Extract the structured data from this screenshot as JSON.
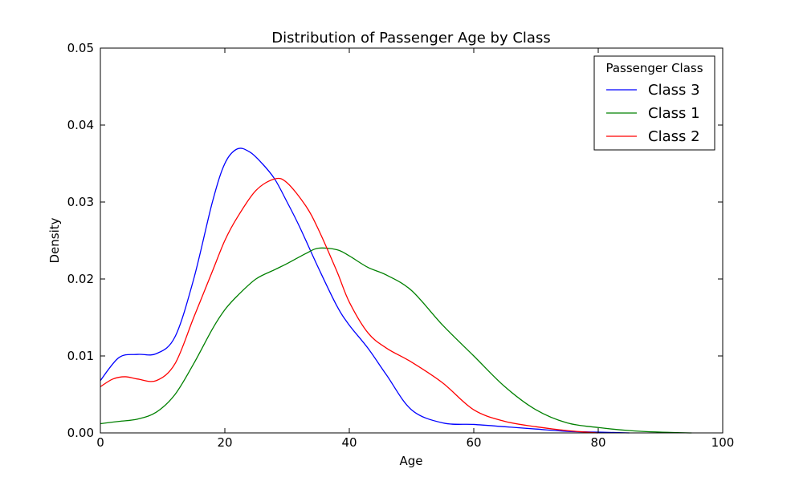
{
  "chart_data": {
    "type": "line",
    "title": "Distribution of Passenger Age by Class",
    "xlabel": "Age",
    "ylabel": "Density",
    "xlim": [
      0,
      100
    ],
    "ylim": [
      0,
      0.05
    ],
    "xticks": [
      "0",
      "20",
      "40",
      "60",
      "80",
      "100"
    ],
    "yticks": [
      "0.00",
      "0.01",
      "0.02",
      "0.03",
      "0.04",
      "0.05"
    ],
    "grid": false,
    "legend": {
      "title": "Passenger Class",
      "placement": "top-right"
    },
    "series": [
      {
        "name": "Class 3",
        "color": "#0000ff",
        "x": [
          0,
          3,
          6,
          9,
          12,
          15,
          18,
          20,
          22,
          24,
          26,
          28,
          30,
          32,
          35,
          38,
          40,
          43,
          46,
          50,
          55,
          60,
          65,
          70,
          75,
          80,
          85
        ],
        "y": [
          0.0068,
          0.0098,
          0.0102,
          0.0103,
          0.0125,
          0.02,
          0.03,
          0.035,
          0.0369,
          0.0365,
          0.035,
          0.033,
          0.03,
          0.0268,
          0.0215,
          0.0165,
          0.014,
          0.011,
          0.0075,
          0.003,
          0.0013,
          0.0011,
          0.0008,
          0.0005,
          0.0002,
          0.0001,
          0.0
        ]
      },
      {
        "name": "Class 1",
        "color": "#008000",
        "x": [
          0,
          3,
          6,
          9,
          12,
          15,
          18,
          20,
          22,
          25,
          28,
          30,
          33,
          35,
          38,
          40,
          43,
          46,
          50,
          55,
          60,
          65,
          70,
          75,
          80,
          85,
          90,
          95
        ],
        "y": [
          0.0012,
          0.0015,
          0.0018,
          0.0027,
          0.005,
          0.009,
          0.0135,
          0.016,
          0.0178,
          0.02,
          0.0212,
          0.022,
          0.0233,
          0.024,
          0.0238,
          0.023,
          0.0215,
          0.0205,
          0.0185,
          0.014,
          0.01,
          0.006,
          0.003,
          0.0013,
          0.0007,
          0.0003,
          0.0001,
          0.0
        ]
      },
      {
        "name": "Class 2",
        "color": "#ff0000",
        "x": [
          0,
          2,
          4,
          6,
          9,
          12,
          15,
          18,
          20,
          22,
          25,
          28,
          30,
          33,
          35,
          38,
          40,
          43,
          46,
          50,
          55,
          60,
          65,
          70,
          75,
          80
        ],
        "y": [
          0.006,
          0.007,
          0.0073,
          0.007,
          0.0068,
          0.009,
          0.015,
          0.021,
          0.025,
          0.028,
          0.0315,
          0.033,
          0.0325,
          0.0295,
          0.0265,
          0.021,
          0.017,
          0.013,
          0.011,
          0.0092,
          0.0065,
          0.003,
          0.0015,
          0.0008,
          0.0003,
          0.0
        ]
      }
    ]
  }
}
